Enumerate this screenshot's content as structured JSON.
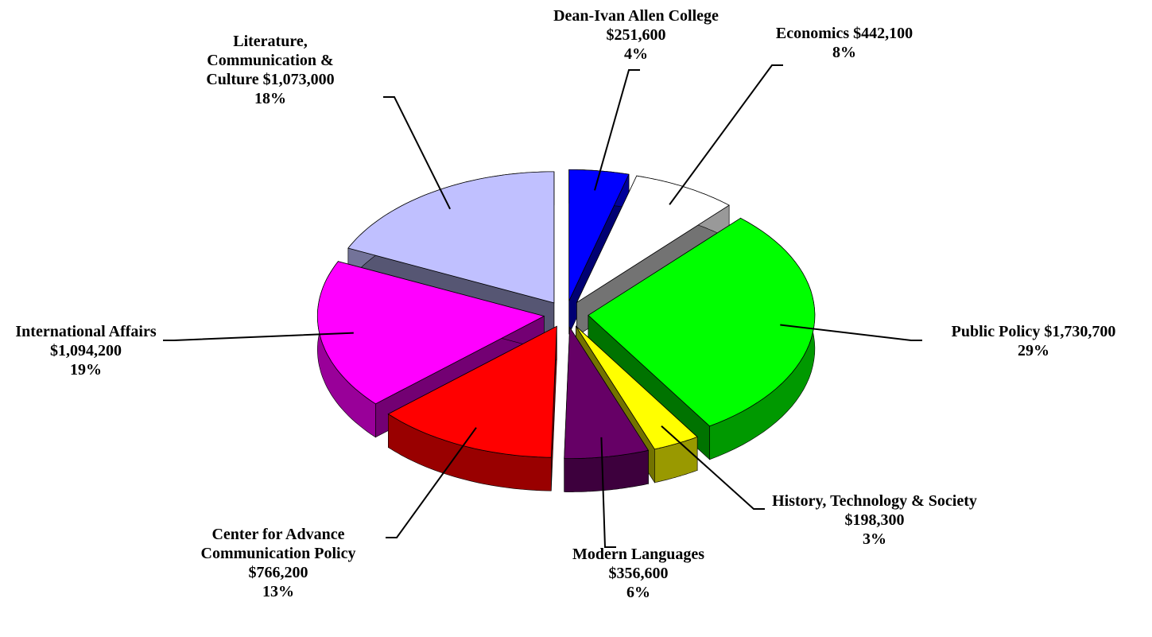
{
  "chart_data": {
    "type": "pie",
    "categories": [
      "Dean-Ivan Allen College",
      "Economics",
      "Public Policy",
      "History, Technology & Society",
      "Modern Languages",
      "Center for Advance Communication Policy",
      "International Affairs",
      "Literature, Communication & Culture"
    ],
    "values": [
      251600,
      442100,
      1730700,
      198300,
      356600,
      766200,
      1094200,
      1073000
    ],
    "value_labels": [
      "$251,600",
      "$442,100",
      "$1,730,700",
      "$198,300",
      "$356,600",
      "$766,200",
      "$1,094,200",
      "$1,073,000"
    ],
    "percents": [
      4,
      8,
      29,
      3,
      6,
      13,
      19,
      18
    ],
    "percent_labels": [
      "4%",
      "8%",
      "29%",
      "3%",
      "6%",
      "13%",
      "19%",
      "18%"
    ],
    "colors": [
      "#0000ff",
      "#ffffff",
      "#00ff00",
      "#ffff00",
      "#660066",
      "#ff0000",
      "#ff00ff",
      "#c0c0ff"
    ]
  }
}
